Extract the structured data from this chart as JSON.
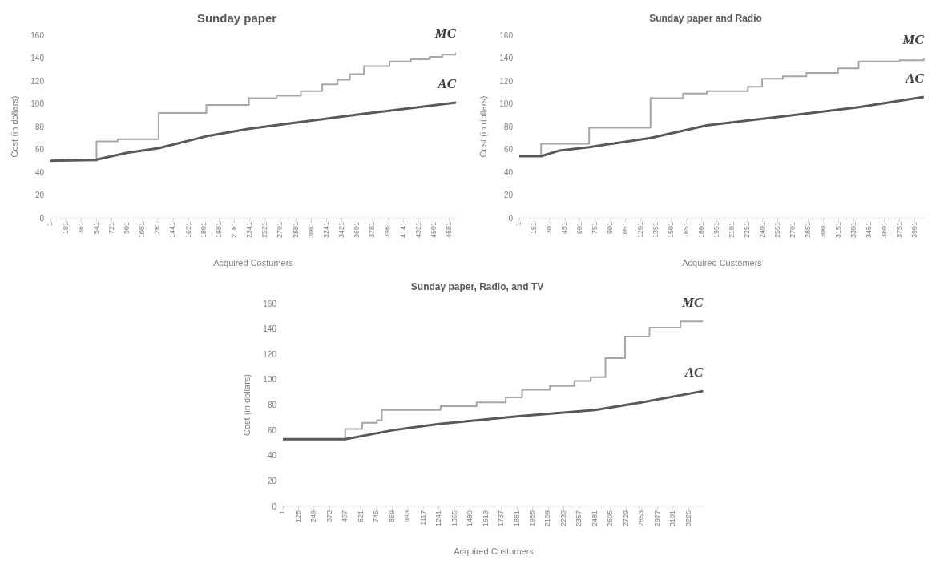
{
  "chart_data": [
    {
      "type": "line",
      "title": "Sunday paper",
      "xlabel": "Acquired Costumers",
      "ylabel": "Cost (in dollars)",
      "xlim": [
        1,
        4760
      ],
      "ylim": [
        0,
        160
      ],
      "yticks": [
        0,
        20,
        40,
        60,
        80,
        100,
        120,
        140,
        160
      ],
      "xticks": [
        1,
        181,
        361,
        541,
        721,
        901,
        1081,
        1261,
        1441,
        1621,
        1801,
        1981,
        2161,
        2341,
        2521,
        2701,
        2881,
        3061,
        3241,
        3421,
        3601,
        3781,
        3961,
        4141,
        4321,
        4501,
        4681
      ],
      "series": [
        {
          "name": "MC",
          "type": "step",
          "color": "#a6a6a6",
          "x": [
            1,
            541,
            790,
            1270,
            1830,
            2330,
            2655,
            2940,
            3190,
            3370,
            3515,
            3680,
            3980,
            4230,
            4450,
            4600,
            4760
          ],
          "values": [
            50,
            67,
            69,
            92,
            99,
            105,
            107,
            111,
            117,
            121,
            126,
            133,
            137,
            139,
            141,
            143,
            145
          ]
        },
        {
          "name": "AC",
          "color": "#595959",
          "x": [
            1,
            541,
            900,
            1270,
            1860,
            2330,
            2940,
            3660,
            4760
          ],
          "values": [
            50,
            51,
            57,
            61,
            72,
            78,
            84,
            91,
            101
          ]
        }
      ]
    },
    {
      "type": "line",
      "title": "Sunday paper and Radio",
      "xlabel": "Acquired Customers",
      "ylabel": "Cost (in dollars)",
      "xlim": [
        1,
        4000
      ],
      "ylim": [
        0,
        160
      ],
      "yticks": [
        0,
        20,
        40,
        60,
        80,
        100,
        120,
        140,
        160
      ],
      "xticks": [
        1,
        151,
        301,
        451,
        601,
        751,
        901,
        1051,
        1201,
        1351,
        1501,
        1651,
        1801,
        1951,
        2101,
        2251,
        2401,
        2551,
        2701,
        2851,
        3001,
        3151,
        3301,
        3451,
        3601,
        3751,
        3901
      ],
      "series": [
        {
          "name": "MC",
          "type": "step",
          "color": "#a6a6a6",
          "x": [
            1,
            216,
            690,
            1295,
            1616,
            1850,
            2256,
            2396,
            2600,
            2833,
            3145,
            3348,
            3753,
            3990
          ],
          "values": [
            54,
            65,
            79,
            105,
            109,
            111,
            115,
            122,
            124,
            127,
            131,
            137,
            138,
            140
          ]
        },
        {
          "name": "AC",
          "color": "#595959",
          "x": [
            1,
            216,
            400,
            690,
            1295,
            1850,
            2600,
            3350,
            3990
          ],
          "values": [
            54,
            54,
            59,
            62,
            70,
            81,
            89,
            97,
            106
          ]
        }
      ]
    },
    {
      "type": "line",
      "title": "Sunday paper, Radio, and TV",
      "xlabel": "Acquired Costumers",
      "ylabel": "Cost (in dollars)",
      "xlim": [
        1,
        3350
      ],
      "ylim": [
        0,
        160
      ],
      "yticks": [
        0,
        20,
        40,
        60,
        80,
        100,
        120,
        140,
        160
      ],
      "xticks": [
        1,
        125,
        249,
        373,
        497,
        621,
        745,
        869,
        993,
        1117,
        1241,
        1365,
        1489,
        1613,
        1737,
        1861,
        1985,
        2109,
        2233,
        2357,
        2481,
        2605,
        2729,
        2853,
        2977,
        3101,
        3225
      ],
      "series": [
        {
          "name": "MC",
          "type": "step",
          "color": "#a6a6a6",
          "x": [
            1,
            496,
            631,
            748,
            787,
            1254,
            1540,
            1772,
            1902,
            2123,
            2317,
            2447,
            2564,
            2720,
            2914,
            3160,
            3340
          ],
          "values": [
            53,
            61,
            66,
            68,
            76,
            79,
            82,
            86,
            92,
            95,
            99,
            102,
            117,
            134,
            141,
            146,
            146
          ]
        },
        {
          "name": "AC",
          "color": "#595959",
          "x": [
            1,
            496,
            870,
            1240,
            1860,
            2480,
            2850,
            3340
          ],
          "values": [
            53,
            53,
            60,
            65,
            71,
            76,
            82,
            91
          ]
        }
      ]
    }
  ]
}
